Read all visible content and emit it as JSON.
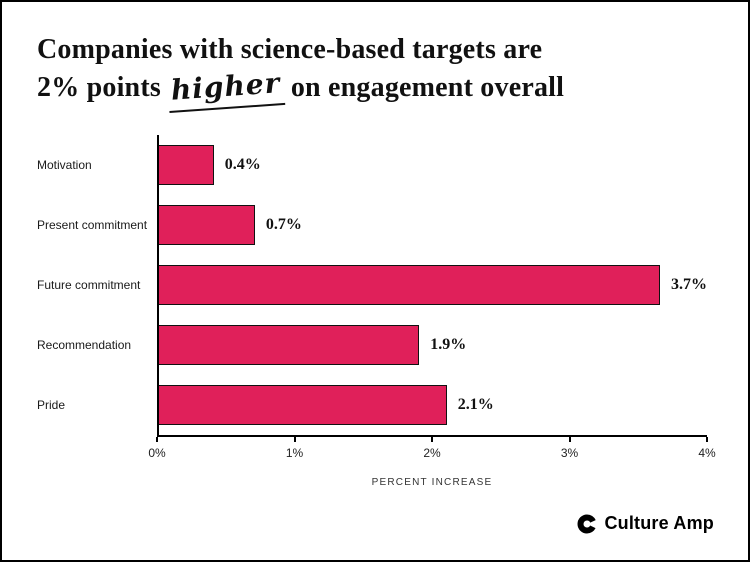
{
  "title": {
    "line1": "Companies with science-based targets are",
    "line2_pre": "2% points ",
    "highlight": "higher",
    "line2_post": " on engagement overall"
  },
  "chart_data": {
    "type": "bar",
    "orientation": "horizontal",
    "categories": [
      "Motivation",
      "Present commitment",
      "Future commitment",
      "Recommendation",
      "Pride"
    ],
    "values": [
      0.4,
      0.7,
      3.7,
      1.9,
      2.1
    ],
    "value_labels": [
      "0.4%",
      "0.7%",
      "3.7%",
      "1.9%",
      "2.1%"
    ],
    "x_ticks": [
      "0%",
      "1%",
      "2%",
      "3%",
      "4%"
    ],
    "xlim": [
      0,
      4
    ],
    "xlabel": "PERCENT INCREASE",
    "bar_color": "#E0205A",
    "grid": false,
    "legend": "none"
  },
  "footer": {
    "logo_text": "Culture Amp"
  },
  "colors": {
    "bar": "#E0205A",
    "axis": "#000000",
    "text": "#111111",
    "background": "#ffffff"
  }
}
